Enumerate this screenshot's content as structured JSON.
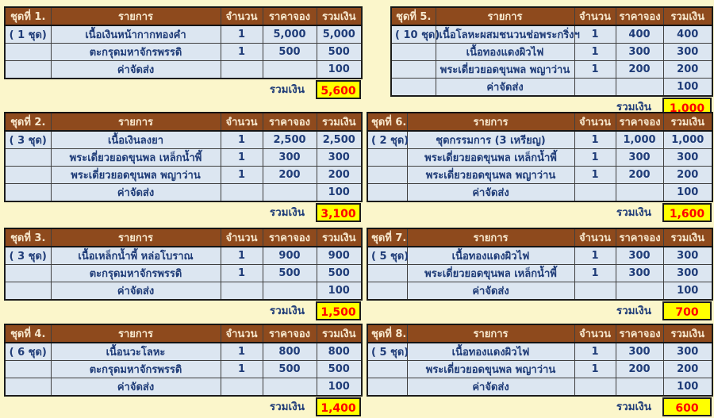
{
  "labels": {
    "total": "รวมเงิน"
  },
  "columns": {
    "item": "รายการ",
    "qty": "จำนวน",
    "price": "ราคาจอง",
    "total": "รวมเงิน"
  },
  "colors": {
    "page_background": "#FBF6CB",
    "header_brown": "#8E4A1D",
    "header_text": "#F7E8CE",
    "row_blue": "#DCE6F1",
    "text_navy": "#1F3C78",
    "total_yellow": "#FFFF00",
    "total_red": "#FE0000"
  },
  "tables": [
    {
      "title": "ชุดที่ 1.",
      "sets": "( 1 ชุด)",
      "rows": [
        {
          "name": "เนื้อเงินหน้ากากทองคำ",
          "qty": "1",
          "price": "5,000",
          "total": "5,000"
        },
        {
          "name": "ตะกรุดมหาจักรพรรดิ",
          "qty": "1",
          "price": "500",
          "total": "500"
        },
        {
          "name": "ค่าจัดส่ง",
          "qty": "",
          "price": "",
          "total": "100"
        }
      ],
      "grand_total": "5,600"
    },
    {
      "title": "ชุดที่ 2.",
      "sets": "( 3 ชุด)",
      "rows": [
        {
          "name": "เนื้อเงินลงยา",
          "qty": "1",
          "price": "2,500",
          "total": "2,500"
        },
        {
          "name": "พระเดี่ยวยอดขุนพล เหล็กน้ำพี้",
          "qty": "1",
          "price": "300",
          "total": "300"
        },
        {
          "name": "พระเดี่ยวยอดขุนพล พญาว่าน",
          "qty": "1",
          "price": "200",
          "total": "200"
        },
        {
          "name": "ค่าจัดส่ง",
          "qty": "",
          "price": "",
          "total": "100"
        }
      ],
      "grand_total": "3,100"
    },
    {
      "title": "ชุดที่ 3.",
      "sets": "( 3 ชุด)",
      "rows": [
        {
          "name": "เนื้อเหล็กน้ำพี้ หล่อโบราณ",
          "qty": "1",
          "price": "900",
          "total": "900"
        },
        {
          "name": "ตะกรุดมหาจักรพรรดิ",
          "qty": "1",
          "price": "500",
          "total": "500"
        },
        {
          "name": "ค่าจัดส่ง",
          "qty": "",
          "price": "",
          "total": "100"
        }
      ],
      "grand_total": "1,500"
    },
    {
      "title": "ชุดที่ 4.",
      "sets": "( 6 ชุด)",
      "rows": [
        {
          "name": "เนื้อนวะโลหะ",
          "qty": "1",
          "price": "800",
          "total": "800"
        },
        {
          "name": "ตะกรุดมหาจักรพรรดิ",
          "qty": "1",
          "price": "500",
          "total": "500"
        },
        {
          "name": "ค่าจัดส่ง",
          "qty": "",
          "price": "",
          "total": "100"
        }
      ],
      "grand_total": "1,400"
    },
    {
      "title": "ชุดที่ 5.",
      "sets": "( 10 ชุด)",
      "rows": [
        {
          "name": "เนื้อโลหะผสมชนวนช่อพระกริ่งฯ",
          "qty": "1",
          "price": "400",
          "total": "400"
        },
        {
          "name": "เนื้อทองแดงผิวไฟ",
          "qty": "1",
          "price": "300",
          "total": "300"
        },
        {
          "name": "พระเดี่ยวยอดขุนพล พญาว่าน",
          "qty": "1",
          "price": "200",
          "total": "200"
        },
        {
          "name": "ค่าจัดส่ง",
          "qty": "",
          "price": "",
          "total": "100"
        }
      ],
      "grand_total": "1,000"
    },
    {
      "title": "ชุดที่ 6.",
      "sets": "( 2 ชุด)",
      "rows": [
        {
          "name": "ชุดกรรมการ (3 เหรียญ)",
          "qty": "1",
          "price": "1,000",
          "total": "1,000"
        },
        {
          "name": "พระเดี่ยวยอดขุนพล เหล็กน้ำพี้",
          "qty": "1",
          "price": "300",
          "total": "300"
        },
        {
          "name": "พระเดี่ยวยอดขุนพล พญาว่าน",
          "qty": "1",
          "price": "200",
          "total": "200"
        },
        {
          "name": "ค่าจัดส่ง",
          "qty": "",
          "price": "",
          "total": "100"
        }
      ],
      "grand_total": "1,600"
    },
    {
      "title": "ชุดที่ 7.",
      "sets": "( 5 ชุด)",
      "rows": [
        {
          "name": "เนื้อทองแดงผิวไฟ",
          "qty": "1",
          "price": "300",
          "total": "300"
        },
        {
          "name": "พระเดี่ยวยอดขุนพล เหล็กน้ำพี้",
          "qty": "1",
          "price": "300",
          "total": "300"
        },
        {
          "name": "ค่าจัดส่ง",
          "qty": "",
          "price": "",
          "total": "100"
        }
      ],
      "grand_total": "700"
    },
    {
      "title": "ชุดที่ 8.",
      "sets": "( 5 ชุด)",
      "rows": [
        {
          "name": "เนื้อทองแดงผิวไฟ",
          "qty": "1",
          "price": "300",
          "total": "300"
        },
        {
          "name": "พระเดี่ยวยอดขุนพล พญาว่าน",
          "qty": "1",
          "price": "200",
          "total": "200"
        },
        {
          "name": "ค่าจัดส่ง",
          "qty": "",
          "price": "",
          "total": "100"
        }
      ],
      "grand_total": "600"
    }
  ]
}
